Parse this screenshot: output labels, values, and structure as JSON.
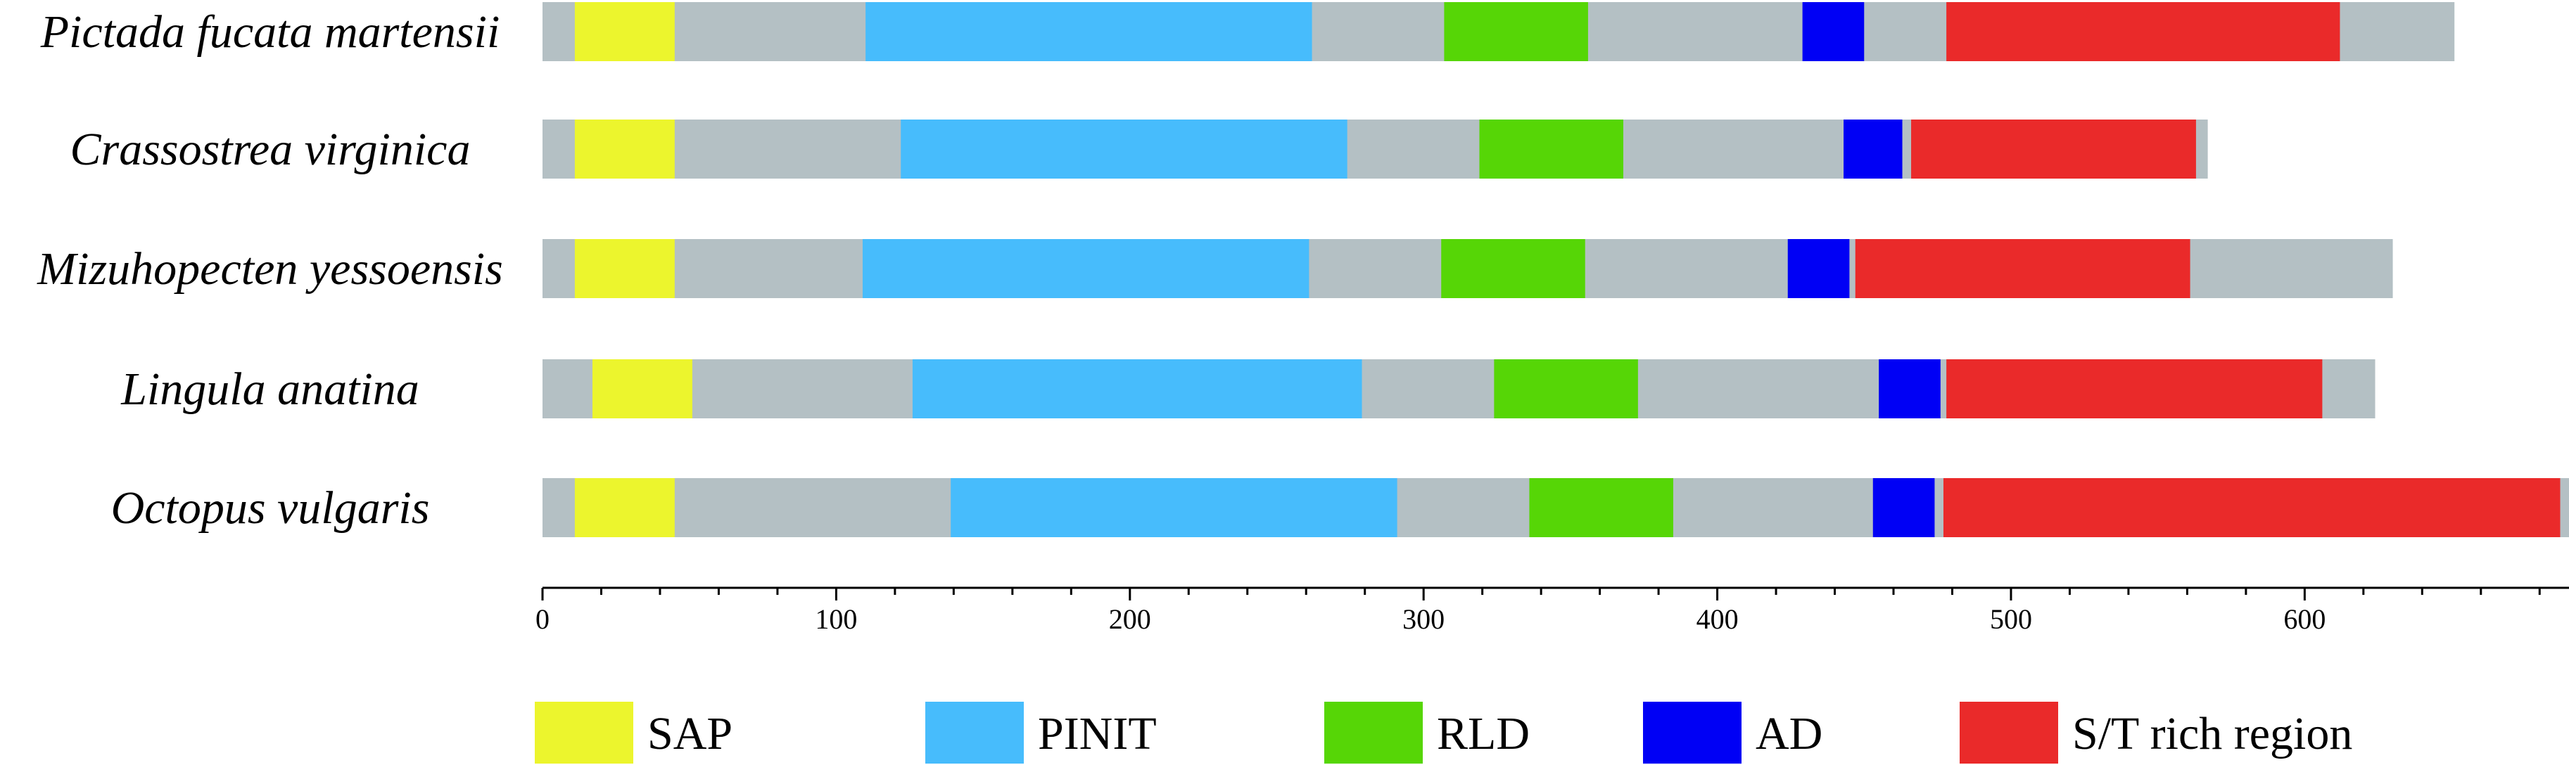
{
  "chart_data": {
    "type": "bar",
    "orientation": "horizontal",
    "grid": false,
    "legend_position": "bottom",
    "xlim": [
      0,
      690
    ],
    "x_ticks": [
      0,
      100,
      200,
      300,
      400,
      500,
      600
    ],
    "colors": {
      "backbone": "#b4c0c4",
      "SAP": "#ecf52d",
      "PINIT": "#47bcfc",
      "RLD": "#56d606",
      "AD": "#0000f5",
      "S/T rich region": "#ea2a2a"
    },
    "legend": [
      {
        "key": "SAP",
        "label": "SAP"
      },
      {
        "key": "PINIT",
        "label": "PINIT"
      },
      {
        "key": "RLD",
        "label": "RLD"
      },
      {
        "key": "AD",
        "label": "AD"
      },
      {
        "key": "S/T rich region",
        "label": "S/T rich region"
      }
    ],
    "proteins": [
      {
        "name": "Pictada fucata martensii",
        "length": 651,
        "domains": [
          {
            "type": "SAP",
            "start": 11,
            "end": 45
          },
          {
            "type": "PINIT",
            "start": 110,
            "end": 262
          },
          {
            "type": "RLD",
            "start": 307,
            "end": 356
          },
          {
            "type": "AD",
            "start": 429,
            "end": 450
          },
          {
            "type": "S/T rich region",
            "start": 478,
            "end": 612
          }
        ]
      },
      {
        "name": "Crassostrea virginica",
        "length": 567,
        "domains": [
          {
            "type": "SAP",
            "start": 11,
            "end": 45
          },
          {
            "type": "PINIT",
            "start": 122,
            "end": 274
          },
          {
            "type": "RLD",
            "start": 319,
            "end": 368
          },
          {
            "type": "AD",
            "start": 443,
            "end": 463
          },
          {
            "type": "S/T rich region",
            "start": 466,
            "end": 563
          }
        ]
      },
      {
        "name": "Mizuhopecten yessoensis",
        "length": 630,
        "domains": [
          {
            "type": "SAP",
            "start": 11,
            "end": 45
          },
          {
            "type": "PINIT",
            "start": 109,
            "end": 261
          },
          {
            "type": "RLD",
            "start": 306,
            "end": 355
          },
          {
            "type": "AD",
            "start": 424,
            "end": 445
          },
          {
            "type": "S/T rich region",
            "start": 447,
            "end": 561
          }
        ]
      },
      {
        "name": "Lingula anatina",
        "length": 624,
        "domains": [
          {
            "type": "SAP",
            "start": 17,
            "end": 51
          },
          {
            "type": "PINIT",
            "start": 126,
            "end": 279
          },
          {
            "type": "RLD",
            "start": 324,
            "end": 373
          },
          {
            "type": "AD",
            "start": 455,
            "end": 476
          },
          {
            "type": "S/T rich region",
            "start": 478,
            "end": 606
          }
        ]
      },
      {
        "name": "Octopus vulgaris",
        "length": 690,
        "domains": [
          {
            "type": "SAP",
            "start": 11,
            "end": 45
          },
          {
            "type": "PINIT",
            "start": 139,
            "end": 291
          },
          {
            "type": "RLD",
            "start": 336,
            "end": 385
          },
          {
            "type": "AD",
            "start": 453,
            "end": 474
          },
          {
            "type": "S/T rich region",
            "start": 477,
            "end": 687
          }
        ]
      }
    ]
  }
}
